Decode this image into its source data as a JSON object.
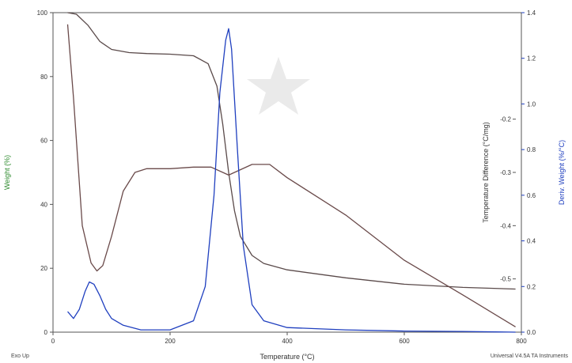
{
  "chart_data": {
    "type": "line",
    "xlabel": "Temperature (°C)",
    "xlim": [
      0,
      800
    ],
    "xticks": [
      0,
      200,
      400,
      600,
      800
    ],
    "y_axes": {
      "weight": {
        "label": "Weight (%)",
        "lim": [
          0,
          100
        ],
        "ticks": [
          0,
          20,
          40,
          60,
          80,
          100
        ],
        "color": "#2e8b2e"
      },
      "temp_diff": {
        "label": "Temperature Difference (°C/mg)",
        "lim": [
          -0.6,
          0.0
        ],
        "ticks": [
          -0.5,
          -0.4,
          -0.3,
          -0.2
        ],
        "color": "#333333"
      },
      "deriv": {
        "label": "Deriv. Weight (%/°C)",
        "lim": [
          0.0,
          1.4
        ],
        "ticks": [
          0.0,
          0.2,
          0.4,
          0.6,
          0.8,
          1.0,
          1.2,
          1.4
        ],
        "color": "#1f3fbf"
      }
    },
    "footer_left": "Exo Up",
    "footer_right": "Universal V4.5A TA Instruments",
    "series": [
      {
        "axis": "weight",
        "color": "#5a4a4a",
        "x": [
          25,
          40,
          60,
          80,
          100,
          130,
          160,
          200,
          240,
          265,
          280,
          290,
          300,
          310,
          320,
          340,
          360,
          400,
          500,
          600,
          700,
          790
        ],
        "values": [
          100,
          99.5,
          96,
          91,
          88.5,
          87.5,
          87.2,
          87,
          86.5,
          84,
          77,
          65,
          50,
          38,
          30,
          24,
          21.5,
          19.5,
          17,
          15,
          14,
          13.5
        ]
      },
      {
        "axis": "temp_diff",
        "color": "#6a4a4a",
        "x": [
          25,
          35,
          50,
          65,
          75,
          85,
          100,
          120,
          140,
          160,
          200,
          240,
          270,
          290,
          300,
          320,
          340,
          370,
          400,
          500,
          600,
          700,
          790
        ],
        "values": [
          -0.022,
          -0.16,
          -0.4,
          -0.47,
          -0.485,
          -0.475,
          -0.42,
          -0.335,
          -0.3,
          -0.293,
          -0.293,
          -0.29,
          -0.29,
          -0.3,
          -0.305,
          -0.295,
          -0.285,
          -0.285,
          -0.31,
          -0.38,
          -0.465,
          -0.53,
          -0.59
        ]
      },
      {
        "axis": "deriv",
        "color": "#1f3fbf",
        "x": [
          25,
          35,
          45,
          55,
          62,
          70,
          80,
          90,
          100,
          120,
          150,
          200,
          240,
          260,
          275,
          285,
          295,
          300,
          305,
          315,
          325,
          340,
          360,
          400,
          500,
          600,
          700,
          790
        ],
        "values": [
          0.09,
          0.06,
          0.1,
          0.18,
          0.22,
          0.21,
          0.16,
          0.1,
          0.06,
          0.03,
          0.01,
          0.01,
          0.05,
          0.2,
          0.6,
          1.05,
          1.28,
          1.33,
          1.24,
          0.8,
          0.38,
          0.12,
          0.05,
          0.02,
          0.01,
          0.005,
          0.003,
          0.0
        ]
      }
    ]
  }
}
